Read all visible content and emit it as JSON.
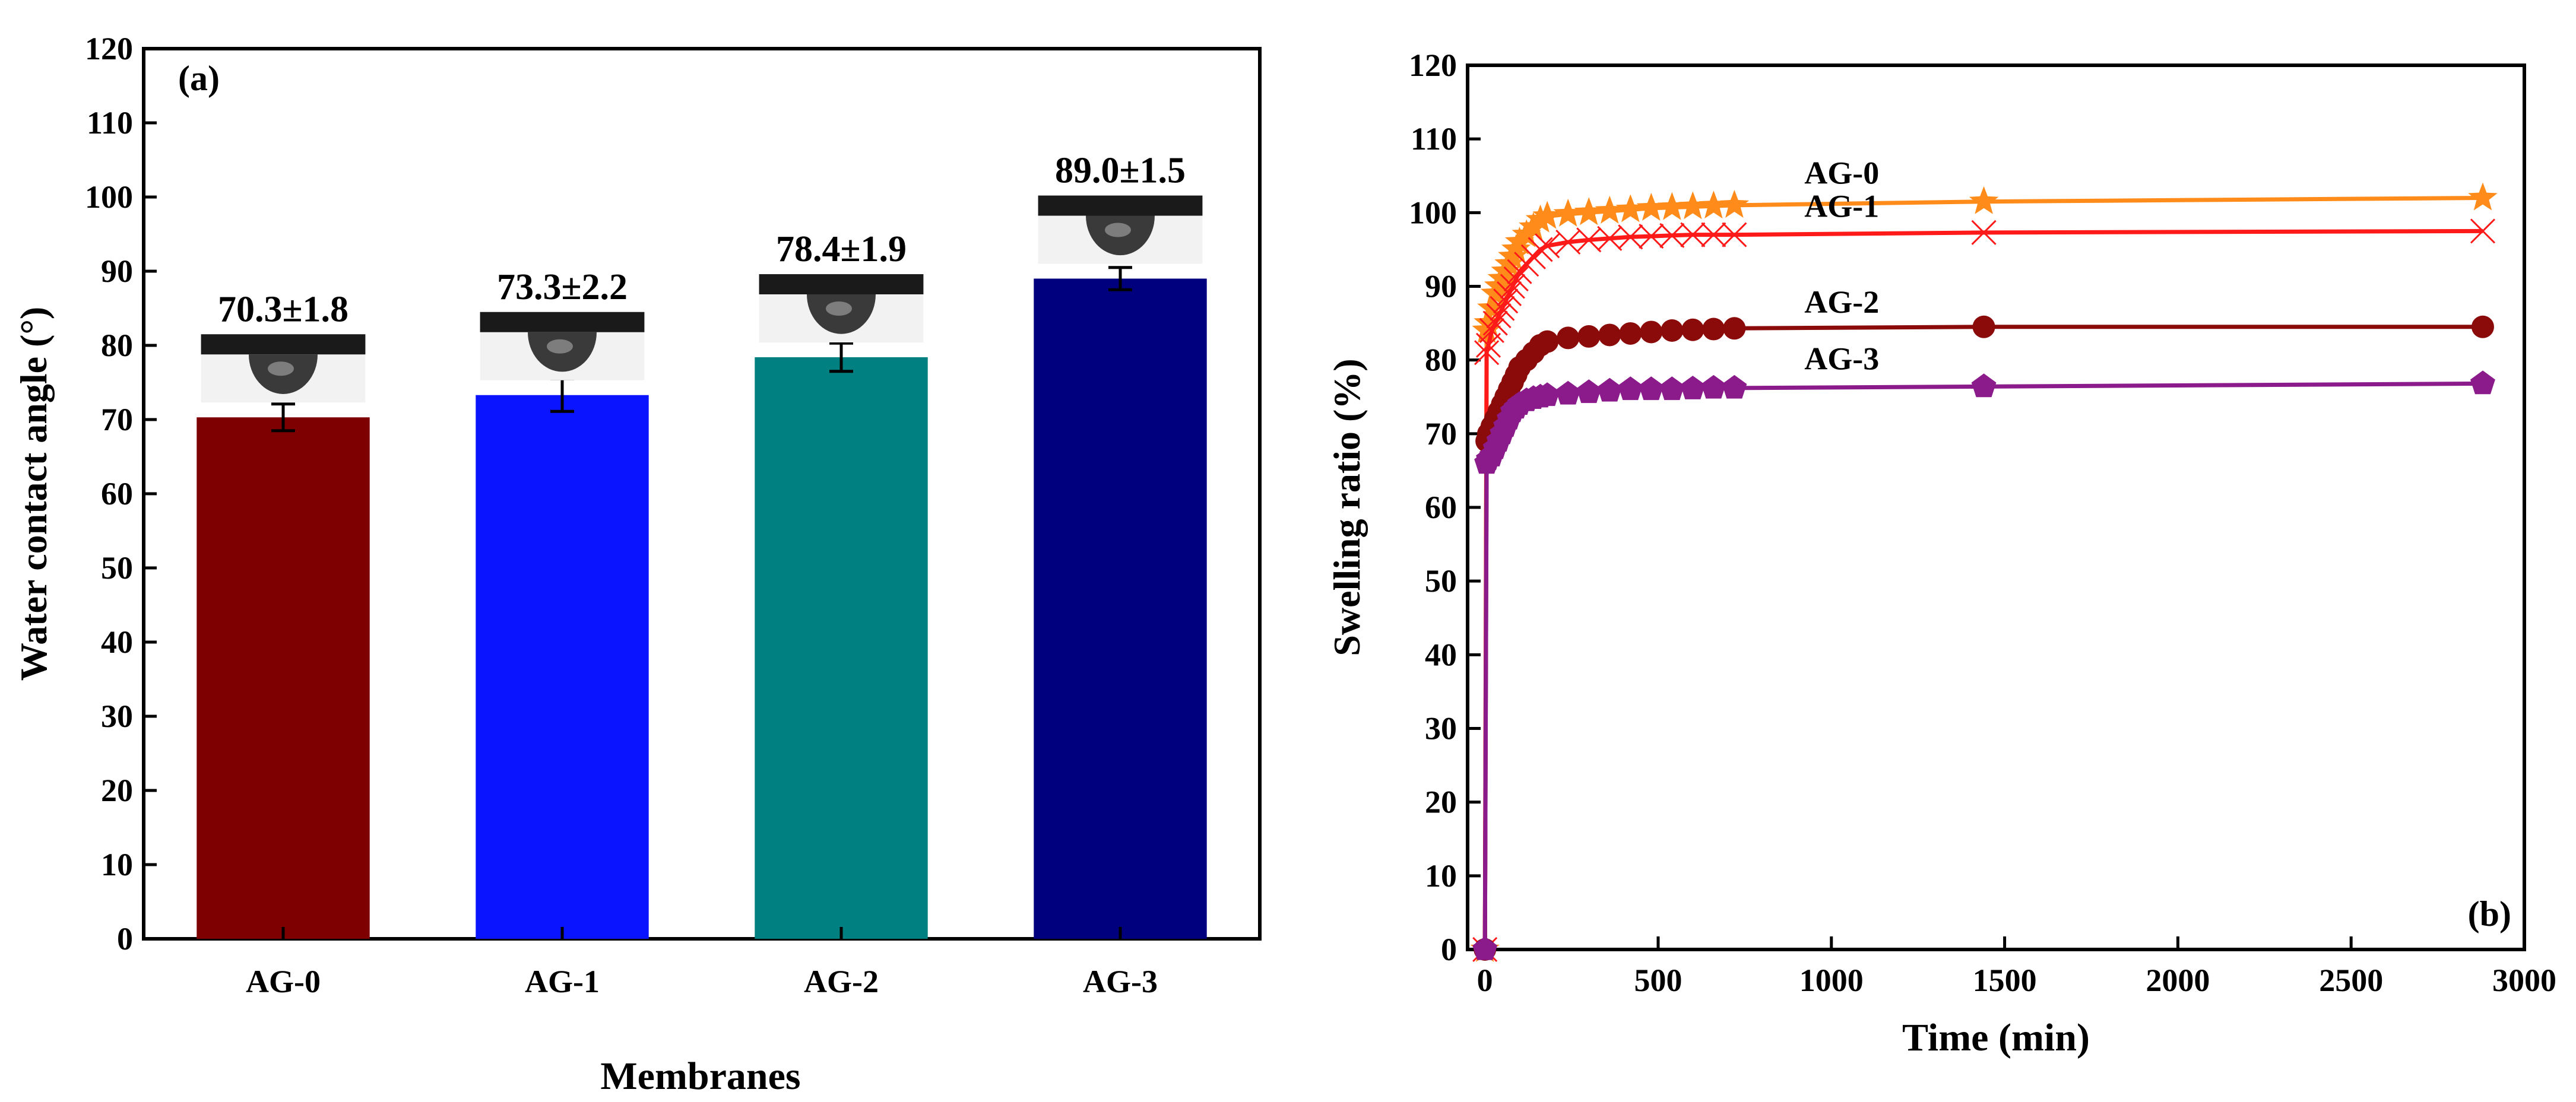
{
  "chart_data": [
    {
      "panel": "(a)",
      "type": "bar",
      "xlabel": "Membranes",
      "ylabel": "Water contact angle (°)",
      "ylim": [
        0,
        120
      ],
      "yticks": [
        0,
        10,
        20,
        30,
        40,
        50,
        60,
        70,
        80,
        90,
        100,
        110,
        120
      ],
      "categories": [
        "AG-0",
        "AG-1",
        "AG-2",
        "AG-3"
      ],
      "values": [
        70.3,
        73.3,
        78.4,
        89.0
      ],
      "errors": [
        1.8,
        2.2,
        1.9,
        1.5
      ],
      "value_labels": [
        "70.3±1.8",
        "73.3±2.2",
        "78.4±1.9",
        "89.0±1.5"
      ],
      "colors": [
        "#7f0000",
        "#0a14ff",
        "#008080",
        "#00007f"
      ],
      "insets": "water droplet photo above each bar",
      "grid": false
    },
    {
      "panel": "(b)",
      "type": "line",
      "xlabel": "Time (min)",
      "ylabel": "Swelling ratio (%)",
      "xlim": [
        -50,
        3000
      ],
      "ylim": [
        0,
        120
      ],
      "xticks": [
        0,
        500,
        1000,
        1500,
        2000,
        2500,
        3000
      ],
      "yticks": [
        0,
        10,
        20,
        30,
        40,
        50,
        60,
        70,
        80,
        90,
        100,
        110,
        120
      ],
      "x": [
        0,
        5,
        10,
        20,
        30,
        40,
        50,
        60,
        70,
        80,
        90,
        100,
        120,
        140,
        160,
        180,
        240,
        300,
        360,
        420,
        480,
        540,
        600,
        660,
        720,
        1440,
        2880
      ],
      "series": [
        {
          "name": "AG-0",
          "color": "#ff8c1a",
          "marker": "star",
          "values": [
            0,
            84,
            85,
            87,
            89,
            90,
            91,
            92,
            93,
            94,
            95,
            96,
            97,
            98,
            99,
            99.5,
            99.8,
            100,
            100.2,
            100.4,
            100.6,
            100.7,
            100.8,
            100.9,
            101,
            101.5,
            102
          ]
        },
        {
          "name": "AG-1",
          "color": "#ff1a1a",
          "marker": "x",
          "values": [
            0,
            81,
            82,
            84,
            85,
            86,
            87,
            88,
            89,
            90,
            91,
            92,
            93,
            94,
            95,
            95.5,
            96,
            96.3,
            96.5,
            96.7,
            96.8,
            96.9,
            97,
            97,
            97,
            97.3,
            97.5
          ]
        },
        {
          "name": "AG-2",
          "color": "#8b0a0a",
          "marker": "circle",
          "values": [
            0,
            69,
            70,
            71,
            72,
            73,
            74,
            75,
            76,
            77,
            78,
            79,
            80,
            81,
            82,
            82.5,
            83,
            83.2,
            83.4,
            83.6,
            83.8,
            84,
            84.1,
            84.2,
            84.3,
            84.5,
            84.5
          ]
        },
        {
          "name": "AG-3",
          "color": "#8b1a8b",
          "marker": "pentagon",
          "values": [
            0,
            66,
            66.5,
            67,
            68,
            69,
            70,
            71,
            72,
            73,
            73.5,
            74,
            74.5,
            74.8,
            75,
            75.2,
            75.4,
            75.6,
            75.8,
            76,
            76,
            76,
            76.1,
            76.2,
            76.2,
            76.4,
            76.8
          ]
        }
      ],
      "grid": false
    }
  ]
}
